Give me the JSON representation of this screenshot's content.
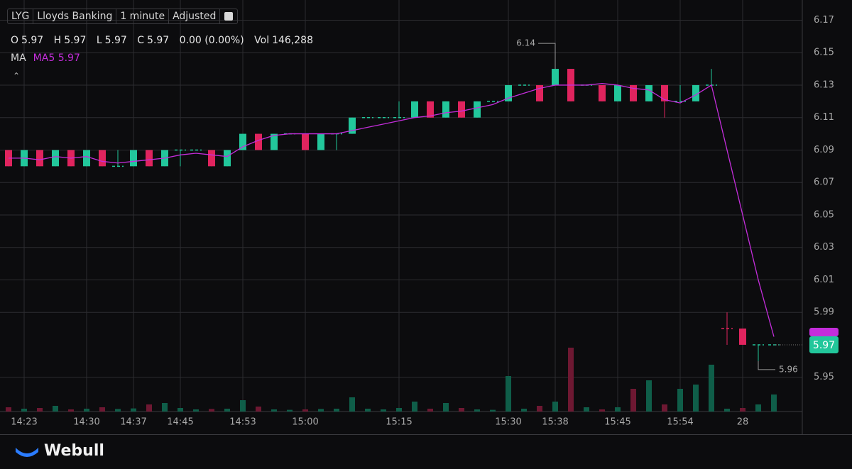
{
  "header": {
    "symbol": "LYG",
    "name": "Lloyds Banking",
    "interval": "1 minute",
    "adjust": "Adjusted",
    "ohlc": [
      {
        "label": "O",
        "value": 5.97
      },
      {
        "label": "H",
        "value": 5.97
      },
      {
        "label": "L",
        "value": 5.97
      },
      {
        "label": "C",
        "value": 5.97
      }
    ],
    "change": "0.00 (0.00%)",
    "volume_label": "Vol",
    "volume": "146,288",
    "ma_label": "MA",
    "ma5_value": 5.97,
    "brand": "Webull"
  },
  "chart_data": {
    "type": "candlestick",
    "categories": [
      null,
      "14:23",
      null,
      null,
      null,
      "14:30",
      null,
      null,
      "14:37",
      null,
      null,
      "14:45",
      null,
      null,
      null,
      "14:53",
      null,
      null,
      null,
      "15:00",
      null,
      null,
      null,
      null,
      null,
      "15:15",
      null,
      null,
      null,
      null,
      null,
      null,
      "15:30",
      null,
      null,
      "15:38",
      null,
      null,
      null,
      "15:45",
      null,
      null,
      null,
      "15:54",
      null,
      null,
      null,
      "28",
      null,
      null
    ],
    "open": [
      6.09,
      6.08,
      6.09,
      6.08,
      6.09,
      6.08,
      6.09,
      6.08,
      6.08,
      6.09,
      6.08,
      6.09,
      6.09,
      6.09,
      6.08,
      6.09,
      6.1,
      6.09,
      6.1,
      6.1,
      6.09,
      6.1,
      6.1,
      6.11,
      6.11,
      6.11,
      6.11,
      6.12,
      6.11,
      6.12,
      6.11,
      6.12,
      6.12,
      6.13,
      6.13,
      6.13,
      6.14,
      6.13,
      6.13,
      6.12,
      6.13,
      6.12,
      6.13,
      6.12,
      6.12,
      6.13,
      5.98,
      5.98,
      5.97,
      5.97
    ],
    "high": [
      6.09,
      6.09,
      6.09,
      6.09,
      6.09,
      6.09,
      6.09,
      6.09,
      6.09,
      6.09,
      6.09,
      6.09,
      6.09,
      6.09,
      6.09,
      6.1,
      6.1,
      6.1,
      6.1,
      6.1,
      6.1,
      6.1,
      6.11,
      6.11,
      6.11,
      6.12,
      6.12,
      6.12,
      6.12,
      6.12,
      6.12,
      6.12,
      6.13,
      6.13,
      6.13,
      6.14,
      6.14,
      6.13,
      6.13,
      6.13,
      6.13,
      6.13,
      6.13,
      6.13,
      6.13,
      6.14,
      5.99,
      5.98,
      5.97,
      5.97
    ],
    "low": [
      6.08,
      6.08,
      6.08,
      6.08,
      6.08,
      6.08,
      6.08,
      6.08,
      6.08,
      6.08,
      6.08,
      6.08,
      6.09,
      6.08,
      6.08,
      6.09,
      6.09,
      6.09,
      6.1,
      6.09,
      6.09,
      6.09,
      6.1,
      6.11,
      6.11,
      6.11,
      6.11,
      6.11,
      6.11,
      6.11,
      6.11,
      6.12,
      6.12,
      6.13,
      6.12,
      6.13,
      6.12,
      6.13,
      6.12,
      6.12,
      6.12,
      6.12,
      6.11,
      6.12,
      6.12,
      6.13,
      5.97,
      5.97,
      5.96,
      5.97
    ],
    "close": [
      6.08,
      6.09,
      6.08,
      6.09,
      6.08,
      6.09,
      6.08,
      6.08,
      6.09,
      6.08,
      6.09,
      6.09,
      6.09,
      6.08,
      6.09,
      6.1,
      6.09,
      6.1,
      6.1,
      6.09,
      6.1,
      6.1,
      6.11,
      6.11,
      6.11,
      6.11,
      6.12,
      6.11,
      6.12,
      6.11,
      6.12,
      6.12,
      6.13,
      6.13,
      6.12,
      6.14,
      6.12,
      6.13,
      6.12,
      6.13,
      6.12,
      6.13,
      6.12,
      6.12,
      6.13,
      6.13,
      5.98,
      5.97,
      5.97,
      5.97
    ],
    "volume": [
      3000,
      2000,
      2500,
      4000,
      1500,
      2000,
      3000,
      1800,
      2200,
      5000,
      6000,
      2500,
      1500,
      1800,
      2000,
      8000,
      3500,
      1500,
      1200,
      1500,
      1800,
      2000,
      10000,
      2000,
      1500,
      2500,
      7000,
      2000,
      6000,
      2500,
      1500,
      1200,
      25000,
      2000,
      4000,
      7000,
      45000,
      3000,
      1500,
      3000,
      16000,
      22000,
      5000,
      16000,
      19000,
      33000,
      2000,
      2500,
      5000,
      12000
    ],
    "ma5": {
      "name": "MA5",
      "color": "#c42ddb",
      "values": [
        6.085,
        6.085,
        6.084,
        6.086,
        6.085,
        6.086,
        6.083,
        6.082,
        6.083,
        6.084,
        6.085,
        6.087,
        6.088,
        6.087,
        6.086,
        6.092,
        6.096,
        6.099,
        6.1,
        6.1,
        6.1,
        6.1,
        6.102,
        6.104,
        6.106,
        6.108,
        6.11,
        6.111,
        6.113,
        6.114,
        6.116,
        6.118,
        6.122,
        6.125,
        6.128,
        6.13,
        6.13,
        6.13,
        6.131,
        6.13,
        6.128,
        6.127,
        6.121,
        6.119,
        6.124,
        6.13,
        6.09,
        6.05,
        6.01,
        5.975
      ]
    },
    "up_color": "#22c79b",
    "down_color": "#e0245e",
    "volume_up_color": "#0f5e49",
    "volume_down_color": "#6e1832",
    "ylim": [
      5.935,
      6.182
    ],
    "yticks": [
      6.17,
      6.15,
      6.13,
      6.11,
      6.09,
      6.07,
      6.05,
      6.03,
      6.01,
      5.99,
      5.95
    ],
    "volume_lim": [
      0,
      50000
    ],
    "high_annotation": 6.14,
    "low_annotation": 5.96,
    "last_price": 5.97,
    "grid": true
  }
}
